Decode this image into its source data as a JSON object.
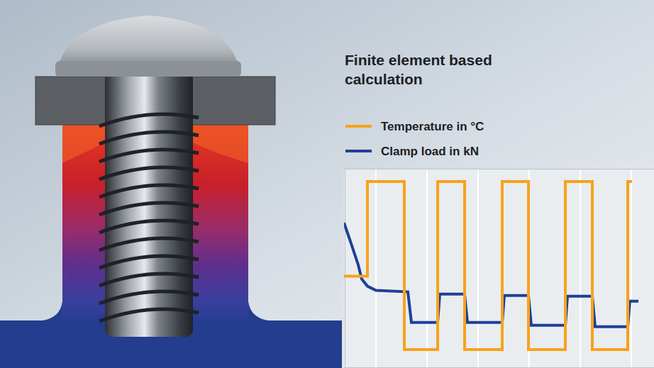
{
  "chart_data": {
    "type": "line",
    "title": "Finite element based calculation",
    "legend": "top",
    "grid": true,
    "tick_labels": false,
    "xlim": [
      0,
      43.7
    ],
    "ylim": [
      0,
      28
    ],
    "xticks": [
      4.5,
      11.7,
      18.9,
      26.1,
      33.3,
      40.5
    ],
    "series": [
      {
        "name": "Temperature in °C",
        "color": "#f7a21b",
        "line_style": "solid",
        "x": [
          0,
          3.3,
          3.3,
          8.5,
          8.5,
          13.2,
          13.2,
          17.0,
          17.0,
          22.3,
          22.3,
          26.0,
          26.0,
          31.2,
          31.2,
          35.0,
          35.0,
          40.0,
          40.0,
          40.6
        ],
        "values": [
          12.9,
          12.9,
          26.2,
          26.2,
          2.6,
          2.6,
          26.2,
          26.2,
          2.6,
          2.6,
          26.2,
          26.2,
          2.6,
          2.6,
          26.2,
          26.2,
          2.6,
          2.6,
          26.2,
          26.2
        ]
      },
      {
        "name": "Clamp load in kN",
        "color": "#1f3f96",
        "line_style": "solid",
        "x": [
          0,
          1.0,
          2.0,
          2.5,
          3.3,
          4.5,
          9.0,
          9.5,
          13.2,
          13.5,
          17.0,
          17.4,
          22.3,
          22.6,
          26.0,
          26.4,
          31.2,
          31.5,
          35.0,
          35.4,
          40.0,
          40.3,
          41.5
        ],
        "values": [
          20.4,
          17.5,
          14.5,
          12.5,
          11.5,
          10.9,
          10.7,
          6.4,
          6.4,
          10.4,
          10.4,
          6.4,
          6.4,
          10.2,
          10.2,
          6.0,
          6.0,
          10.1,
          10.1,
          5.8,
          5.8,
          9.4,
          9.4
        ]
      }
    ]
  }
}
